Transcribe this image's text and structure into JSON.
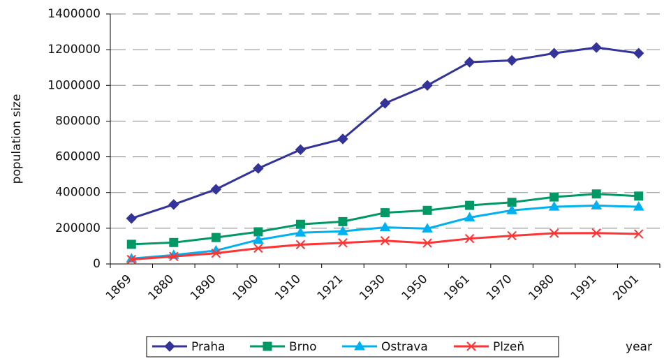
{
  "chart_data": {
    "type": "line",
    "y_label": "population size",
    "x_label": "year",
    "categories": [
      "1869",
      "1880",
      "1890",
      "1900",
      "1910",
      "1921",
      "1930",
      "1950",
      "1961",
      "1970",
      "1980",
      "1991",
      "2001"
    ],
    "series": [
      {
        "name": "Praha",
        "color": "#333399",
        "marker": "diamond",
        "values": [
          255000,
          333000,
          418000,
          535000,
          640000,
          700000,
          900000,
          1000000,
          1130000,
          1140000,
          1180000,
          1212000,
          1180000
        ]
      },
      {
        "name": "Brno",
        "color": "#009966",
        "marker": "square",
        "values": [
          110000,
          120000,
          148000,
          180000,
          222000,
          237000,
          287000,
          300000,
          328000,
          345000,
          375000,
          392000,
          380000
        ]
      },
      {
        "name": "Ostrava",
        "color": "#00b0f0",
        "marker": "triangle",
        "values": [
          30000,
          50000,
          75000,
          135000,
          175000,
          183000,
          205000,
          198000,
          260000,
          300000,
          320000,
          327000,
          320000
        ]
      },
      {
        "name": "Plzeň",
        "color": "#ff3333",
        "marker": "x",
        "values": [
          25000,
          42000,
          60000,
          88000,
          108000,
          118000,
          130000,
          117000,
          142000,
          158000,
          172000,
          173000,
          168000
        ]
      }
    ],
    "ylim": [
      0,
      1400000
    ],
    "yticks": [
      0,
      200000,
      400000,
      600000,
      800000,
      1000000,
      1200000,
      1400000
    ],
    "grid": true,
    "legend": "bottom"
  }
}
